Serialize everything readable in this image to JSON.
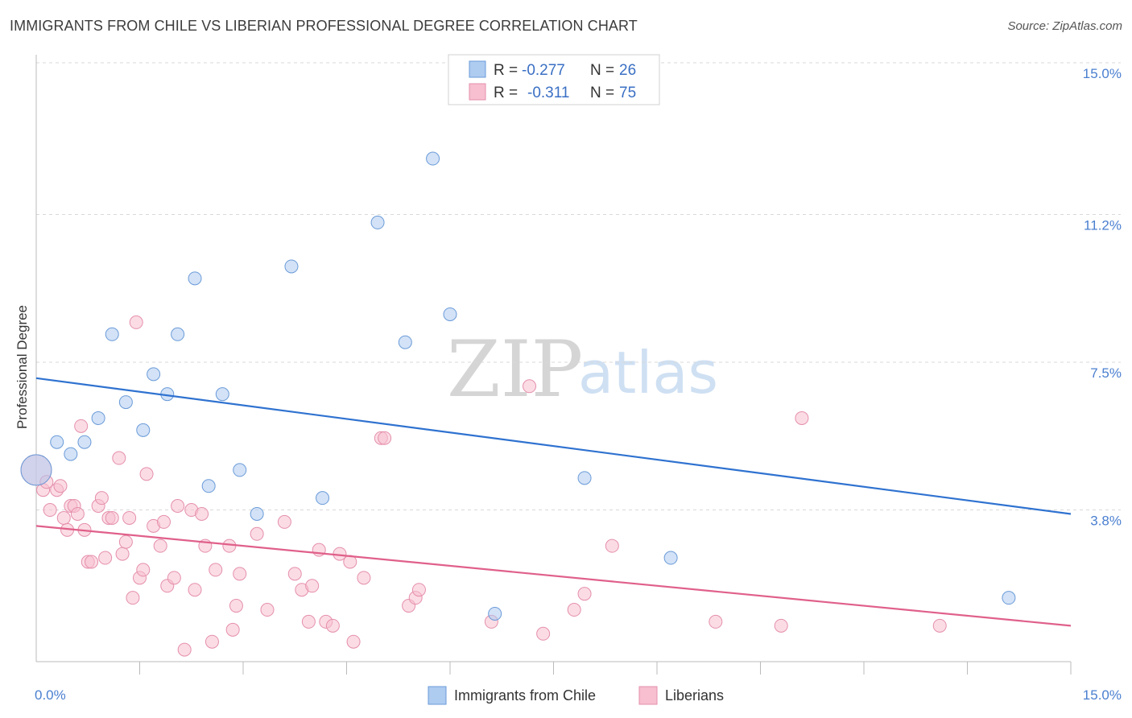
{
  "title": "IMMIGRANTS FROM CHILE VS LIBERIAN PROFESSIONAL DEGREE CORRELATION CHART",
  "source": "Source: ZipAtlas.com",
  "watermark": {
    "zip": "ZIP",
    "atlas": "atlas"
  },
  "legend": {
    "rows": [
      {
        "r_label": "R =",
        "r_value": "-0.277",
        "n_label": "N =",
        "n_value": "26",
        "color": "#aecbf0",
        "stroke": "#6a9bd8"
      },
      {
        "r_label": "R =",
        "r_value": "-0.311",
        "n_label": "N =",
        "n_value": "75",
        "color": "#f7bfd0",
        "stroke": "#e58fab"
      }
    ]
  },
  "bottom_legend": [
    {
      "label": "Immigrants from Chile",
      "color": "#aecbf0",
      "stroke": "#6a9bd8"
    },
    {
      "label": "Liberians",
      "color": "#f7bfd0",
      "stroke": "#e58fab"
    }
  ],
  "chart_data": {
    "type": "scatter",
    "title": "IMMIGRANTS FROM CHILE VS LIBERIAN PROFESSIONAL DEGREE CORRELATION CHART",
    "xlabel": "",
    "ylabel": "Professional Degree",
    "xlim": [
      0,
      15
    ],
    "ylim": [
      0,
      15
    ],
    "x_tick_labels": [
      "0.0%",
      "15.0%"
    ],
    "y_tick_labels": [
      {
        "value": 3.8,
        "label": "3.8%"
      },
      {
        "value": 7.5,
        "label": "7.5%"
      },
      {
        "value": 11.2,
        "label": "11.2%"
      },
      {
        "value": 15.0,
        "label": "15.0%"
      }
    ],
    "series": [
      {
        "name": "Immigrants from Chile",
        "color": "#aecbf0",
        "stroke": "#6a9bd8",
        "trend": {
          "x": [
            0,
            15
          ],
          "y": [
            7.1,
            3.7
          ],
          "color": "#2f72d0"
        },
        "points": [
          {
            "x": 0.0,
            "y": 4.8,
            "big": true
          },
          {
            "x": 0.3,
            "y": 5.5
          },
          {
            "x": 0.5,
            "y": 5.2
          },
          {
            "x": 0.7,
            "y": 5.5
          },
          {
            "x": 0.9,
            "y": 6.1
          },
          {
            "x": 1.1,
            "y": 8.2
          },
          {
            "x": 1.3,
            "y": 6.5
          },
          {
            "x": 1.55,
            "y": 5.8
          },
          {
            "x": 1.7,
            "y": 7.2
          },
          {
            "x": 1.9,
            "y": 6.7
          },
          {
            "x": 2.05,
            "y": 8.2
          },
          {
            "x": 2.3,
            "y": 9.6
          },
          {
            "x": 2.5,
            "y": 4.4
          },
          {
            "x": 2.7,
            "y": 6.7
          },
          {
            "x": 2.95,
            "y": 4.8
          },
          {
            "x": 3.2,
            "y": 3.7
          },
          {
            "x": 3.7,
            "y": 9.9
          },
          {
            "x": 4.15,
            "y": 4.1
          },
          {
            "x": 4.95,
            "y": 11.0
          },
          {
            "x": 5.35,
            "y": 8.0
          },
          {
            "x": 5.75,
            "y": 12.6
          },
          {
            "x": 6.0,
            "y": 8.7
          },
          {
            "x": 6.65,
            "y": 1.2
          },
          {
            "x": 7.95,
            "y": 4.6
          },
          {
            "x": 9.2,
            "y": 2.6
          },
          {
            "x": 14.1,
            "y": 1.6
          }
        ]
      },
      {
        "name": "Liberians",
        "color": "#f7bfd0",
        "stroke": "#e58fab",
        "trend": {
          "x": [
            0,
            15
          ],
          "y": [
            3.4,
            0.9
          ],
          "color": "#e0608a"
        },
        "points": [
          {
            "x": 0.0,
            "y": 4.8,
            "big": true
          },
          {
            "x": 0.1,
            "y": 4.3
          },
          {
            "x": 0.15,
            "y": 4.5
          },
          {
            "x": 0.2,
            "y": 3.8
          },
          {
            "x": 0.3,
            "y": 4.3
          },
          {
            "x": 0.35,
            "y": 4.4
          },
          {
            "x": 0.4,
            "y": 3.6
          },
          {
            "x": 0.45,
            "y": 3.3
          },
          {
            "x": 0.5,
            "y": 3.9
          },
          {
            "x": 0.55,
            "y": 3.9
          },
          {
            "x": 0.6,
            "y": 3.7
          },
          {
            "x": 0.65,
            "y": 5.9
          },
          {
            "x": 0.7,
            "y": 3.3
          },
          {
            "x": 0.75,
            "y": 2.5
          },
          {
            "x": 0.8,
            "y": 2.5
          },
          {
            "x": 0.9,
            "y": 3.9
          },
          {
            "x": 0.95,
            "y": 4.1
          },
          {
            "x": 1.0,
            "y": 2.6
          },
          {
            "x": 1.05,
            "y": 3.6
          },
          {
            "x": 1.1,
            "y": 3.6
          },
          {
            "x": 1.2,
            "y": 5.1
          },
          {
            "x": 1.25,
            "y": 2.7
          },
          {
            "x": 1.3,
            "y": 3.0
          },
          {
            "x": 1.35,
            "y": 3.6
          },
          {
            "x": 1.4,
            "y": 1.6
          },
          {
            "x": 1.45,
            "y": 8.5
          },
          {
            "x": 1.5,
            "y": 2.1
          },
          {
            "x": 1.55,
            "y": 2.3
          },
          {
            "x": 1.6,
            "y": 4.7
          },
          {
            "x": 1.7,
            "y": 3.4
          },
          {
            "x": 1.8,
            "y": 2.9
          },
          {
            "x": 1.85,
            "y": 3.5
          },
          {
            "x": 1.9,
            "y": 1.9
          },
          {
            "x": 2.0,
            "y": 2.1
          },
          {
            "x": 2.05,
            "y": 3.9
          },
          {
            "x": 2.15,
            "y": 0.3
          },
          {
            "x": 2.25,
            "y": 3.8
          },
          {
            "x": 2.3,
            "y": 1.8
          },
          {
            "x": 2.4,
            "y": 3.7
          },
          {
            "x": 2.45,
            "y": 2.9
          },
          {
            "x": 2.55,
            "y": 0.5
          },
          {
            "x": 2.6,
            "y": 2.3
          },
          {
            "x": 2.8,
            "y": 2.9
          },
          {
            "x": 2.85,
            "y": 0.8
          },
          {
            "x": 2.9,
            "y": 1.4
          },
          {
            "x": 2.95,
            "y": 2.2
          },
          {
            "x": 3.2,
            "y": 3.2
          },
          {
            "x": 3.35,
            "y": 1.3
          },
          {
            "x": 3.6,
            "y": 3.5
          },
          {
            "x": 3.75,
            "y": 2.2
          },
          {
            "x": 3.85,
            "y": 1.8
          },
          {
            "x": 3.95,
            "y": 1.0
          },
          {
            "x": 4.0,
            "y": 1.9
          },
          {
            "x": 4.1,
            "y": 2.8
          },
          {
            "x": 4.2,
            "y": 1.0
          },
          {
            "x": 4.3,
            "y": 0.9
          },
          {
            "x": 4.4,
            "y": 2.7
          },
          {
            "x": 4.55,
            "y": 2.5
          },
          {
            "x": 4.6,
            "y": 0.5
          },
          {
            "x": 4.75,
            "y": 2.1
          },
          {
            "x": 5.0,
            "y": 5.6
          },
          {
            "x": 5.05,
            "y": 5.6
          },
          {
            "x": 5.4,
            "y": 1.4
          },
          {
            "x": 5.5,
            "y": 1.6
          },
          {
            "x": 5.55,
            "y": 1.8
          },
          {
            "x": 6.6,
            "y": 1.0
          },
          {
            "x": 7.15,
            "y": 6.9
          },
          {
            "x": 7.35,
            "y": 0.7
          },
          {
            "x": 7.8,
            "y": 1.3
          },
          {
            "x": 7.95,
            "y": 1.7
          },
          {
            "x": 8.35,
            "y": 2.9
          },
          {
            "x": 9.85,
            "y": 1.0
          },
          {
            "x": 10.8,
            "y": 0.9
          },
          {
            "x": 11.1,
            "y": 6.1
          },
          {
            "x": 13.1,
            "y": 0.9
          }
        ]
      }
    ]
  }
}
